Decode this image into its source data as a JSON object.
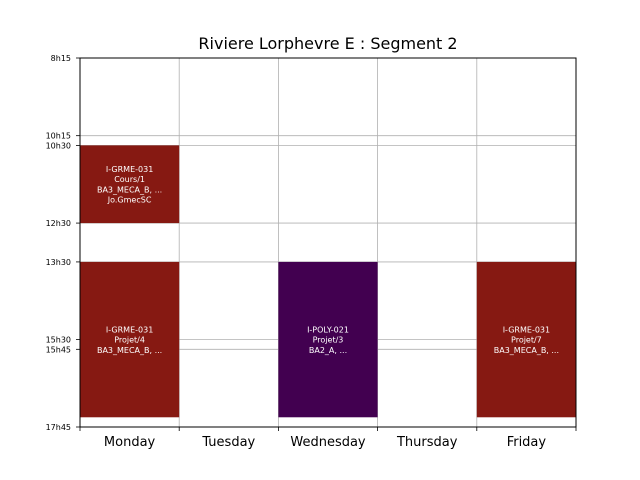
{
  "chart_data": {
    "type": "timetable",
    "title": "Riviere Lorphevre E : Segment 2",
    "days": [
      "Monday",
      "Tuesday",
      "Wednesday",
      "Thursday",
      "Friday"
    ],
    "time_axis": {
      "ticks": [
        "8h15",
        "10h15",
        "10h30",
        "12h30",
        "13h30",
        "15h30",
        "15h45",
        "17h45"
      ],
      "range": [
        "8h15",
        "17h45"
      ],
      "inverted": true,
      "grid": true
    },
    "events": [
      {
        "day": "Monday",
        "start": "10h30",
        "end": "12h30",
        "lines": [
          "I-GRME-031",
          "Cours/1",
          "BA3_MECA_B, ...",
          "Jo.GmecSC"
        ],
        "color": "#861912"
      },
      {
        "day": "Monday",
        "start": "13h30",
        "end": "17h30",
        "lines": [
          "I-GRME-031",
          "Projet/4",
          "BA3_MECA_B, ..."
        ],
        "color": "#861912"
      },
      {
        "day": "Wednesday",
        "start": "13h30",
        "end": "17h30",
        "lines": [
          "I-POLY-021",
          "Projet/3",
          "BA2_A, ..."
        ],
        "color": "#420050"
      },
      {
        "day": "Friday",
        "start": "13h30",
        "end": "17h30",
        "lines": [
          "I-GRME-031",
          "Projet/7",
          "BA3_MECA_B, ..."
        ],
        "color": "#861912"
      }
    ]
  }
}
